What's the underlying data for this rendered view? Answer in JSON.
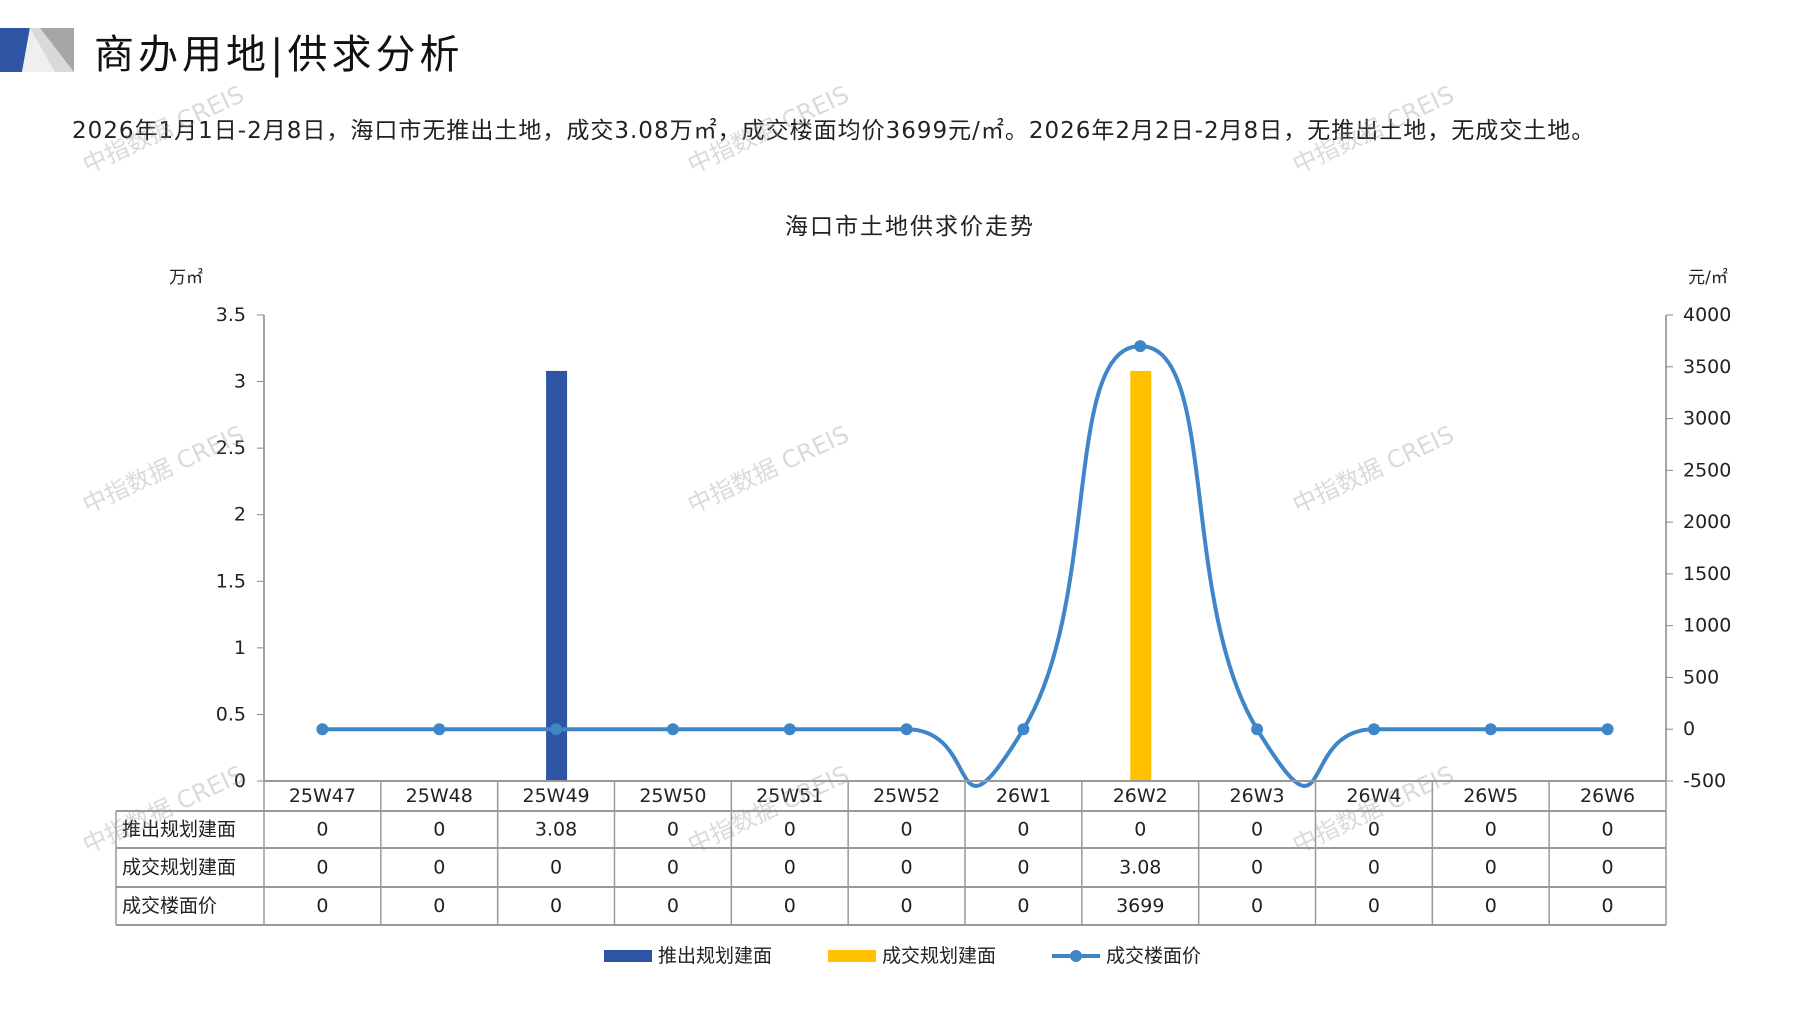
{
  "header": {
    "title": "商办用地|供求分析",
    "summary": "2026年1月1日-2月8日，海口市无推出土地，成交3.08万㎡，成交楼面均价3699元/㎡。2026年2月2日-2月8日，无推出土地，无成交土地。"
  },
  "watermark": "中指数据 CREIS",
  "chart_data": {
    "type": "bar+line",
    "title": "海口市土地供求价走势",
    "left_unit": "万㎡",
    "right_unit": "元/㎡",
    "categories": [
      "25W47",
      "25W48",
      "25W49",
      "25W50",
      "25W51",
      "25W52",
      "26W1",
      "26W2",
      "26W3",
      "26W4",
      "26W5",
      "26W6"
    ],
    "left_axis": {
      "range": [
        0,
        3.5
      ],
      "ticks": [
        "0",
        "0.5",
        "1",
        "1.5",
        "2",
        "2.5",
        "3",
        "3.5"
      ]
    },
    "right_axis": {
      "range": [
        -500,
        4000
      ],
      "ticks": [
        "-500",
        "0",
        "500",
        "1000",
        "1500",
        "2000",
        "2500",
        "3000",
        "3500",
        "4000"
      ]
    },
    "grid": false,
    "legend_placement": "bottom",
    "series": [
      {
        "name": "推出规划建面",
        "type": "bar",
        "axis": "left",
        "color": "#2E54A4",
        "values": [
          0,
          0,
          3.08,
          0,
          0,
          0,
          0,
          0,
          0,
          0,
          0,
          0
        ],
        "labels": [
          "0",
          "0",
          "3.08",
          "0",
          "0",
          "0",
          "0",
          "0",
          "0",
          "0",
          "0",
          "0"
        ]
      },
      {
        "name": "成交规划建面",
        "type": "bar",
        "axis": "left",
        "color": "#FFC000",
        "values": [
          0,
          0,
          0,
          0,
          0,
          0,
          0,
          3.08,
          0,
          0,
          0,
          0
        ],
        "labels": [
          "0",
          "0",
          "0",
          "0",
          "0",
          "0",
          "0",
          "3.08",
          "0",
          "0",
          "0",
          "0"
        ]
      },
      {
        "name": "成交楼面价",
        "type": "line",
        "smooth": true,
        "axis": "right",
        "color": "#3F86C8",
        "values": [
          0,
          0,
          0,
          0,
          0,
          0,
          0,
          3699,
          0,
          0,
          0,
          0
        ],
        "labels": [
          "0",
          "0",
          "0",
          "0",
          "0",
          "0",
          "0",
          "3699",
          "0",
          "0",
          "0",
          "0"
        ]
      }
    ]
  }
}
